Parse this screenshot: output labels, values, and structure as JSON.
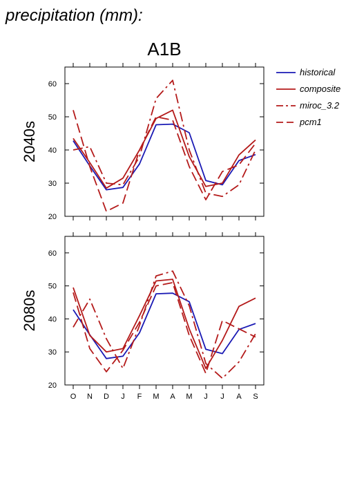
{
  "page_title": "precipitation (mm):",
  "scenario": "A1B",
  "colors": {
    "historical": "#1a1ab4",
    "model": "#b41a1a",
    "axis": "#000000"
  },
  "chart_data": [
    {
      "type": "line",
      "row_label": "2040s",
      "categories": [
        "O",
        "N",
        "D",
        "J",
        "F",
        "M",
        "A",
        "M",
        "J",
        "J",
        "A",
        "S"
      ],
      "ylim": [
        20,
        65
      ],
      "yticks": [
        20,
        30,
        40,
        50,
        60
      ],
      "grid": false,
      "legend_position": "right",
      "series": [
        {
          "name": "historical",
          "dash": "solid",
          "color": "#1a1ab4",
          "values": [
            42.8,
            35.2,
            28.0,
            28.7,
            35.8,
            47.6,
            47.8,
            45.2,
            30.8,
            29.5,
            36.8,
            38.6
          ]
        },
        {
          "name": "composite",
          "dash": "solid",
          "color": "#b41a1a",
          "values": [
            43.5,
            36.2,
            28.5,
            31.5,
            40.0,
            49.5,
            52.0,
            38.0,
            29.0,
            30.0,
            38.5,
            43.0
          ]
        },
        {
          "name": "miroc_3.2",
          "dash": "dashdot",
          "color": "#b41a1a",
          "values": [
            40.0,
            41.0,
            30.0,
            29.5,
            38.0,
            55.5,
            61.0,
            40.0,
            27.0,
            26.0,
            29.5,
            40.0
          ]
        },
        {
          "name": "pcm1",
          "dash": "dash",
          "color": "#b41a1a",
          "values": [
            52.0,
            35.0,
            21.5,
            24.0,
            40.0,
            50.0,
            49.0,
            35.0,
            25.0,
            33.5,
            35.5,
            42.0
          ]
        }
      ]
    },
    {
      "type": "line",
      "row_label": "2080s",
      "categories": [
        "O",
        "N",
        "D",
        "J",
        "F",
        "M",
        "A",
        "M",
        "J",
        "J",
        "A",
        "S"
      ],
      "ylim": [
        20,
        65
      ],
      "yticks": [
        20,
        30,
        40,
        50,
        60
      ],
      "grid": false,
      "legend_position": "none",
      "series": [
        {
          "name": "historical",
          "dash": "solid",
          "color": "#1a1ab4",
          "values": [
            42.8,
            35.2,
            28.0,
            28.7,
            35.8,
            47.6,
            47.8,
            45.2,
            30.8,
            29.5,
            36.8,
            38.6
          ]
        },
        {
          "name": "composite",
          "dash": "solid",
          "color": "#b41a1a",
          "values": [
            49.5,
            35.0,
            30.0,
            31.0,
            41.0,
            51.5,
            52.0,
            37.0,
            25.0,
            33.5,
            43.8,
            46.3
          ]
        },
        {
          "name": "miroc_3.2",
          "dash": "dashdot",
          "color": "#b41a1a",
          "values": [
            37.5,
            46.0,
            34.0,
            25.0,
            38.0,
            53.0,
            54.5,
            44.0,
            26.5,
            22.0,
            27.0,
            35.5
          ]
        },
        {
          "name": "pcm1",
          "dash": "dash",
          "color": "#b41a1a",
          "values": [
            48.0,
            31.0,
            24.0,
            30.5,
            39.0,
            50.0,
            51.0,
            35.0,
            23.5,
            39.5,
            37.0,
            34.5
          ]
        }
      ]
    }
  ],
  "legend": [
    {
      "name": "historical",
      "dash": "solid",
      "color": "#1a1ab4"
    },
    {
      "name": "composite",
      "dash": "solid",
      "color": "#b41a1a"
    },
    {
      "name": "miroc_3.2",
      "dash": "dashdot",
      "color": "#b41a1a"
    },
    {
      "name": "pcm1",
      "dash": "dash",
      "color": "#b41a1a"
    }
  ]
}
